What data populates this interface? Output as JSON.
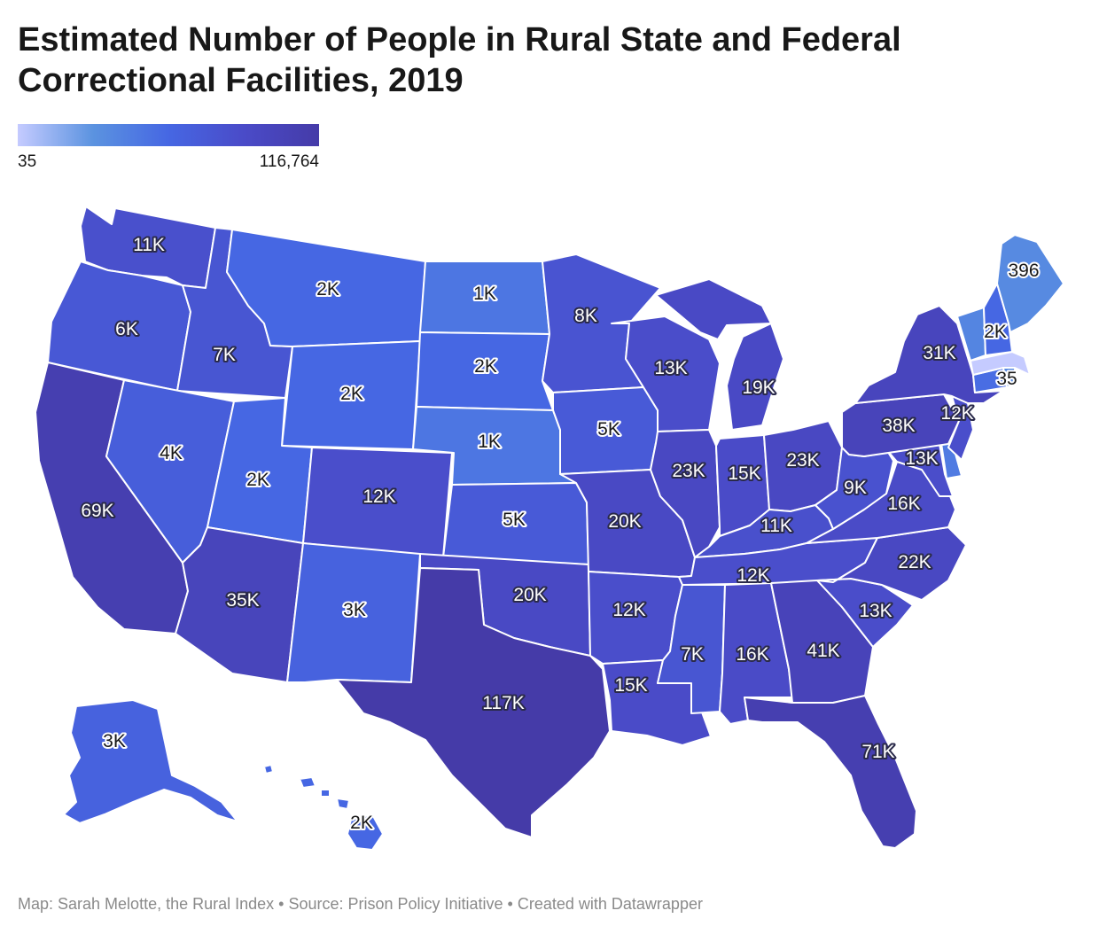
{
  "title": "Estimated Number of People in Rural State and Federal Correctional Facilities, 2019",
  "legend": {
    "min_label": "35",
    "max_label": "116,764",
    "min_value": 35,
    "max_value": 116764
  },
  "colors": {
    "scale": [
      "#c5cbff",
      "#5b93e0",
      "#4667e3",
      "#4a4bc8",
      "#453ba8"
    ],
    "state_border": "#ffffff",
    "footer_text": "#8a8a8a"
  },
  "footer": "Map: Sarah Melotte, the Rural Index • Source: Prison Policy Initiative • Created with Datawrapper",
  "states": [
    {
      "id": "WA",
      "label": "11K",
      "value": 11000
    },
    {
      "id": "OR",
      "label": "6K",
      "value": 6000
    },
    {
      "id": "CA",
      "label": "69K",
      "value": 69000
    },
    {
      "id": "ID",
      "label": "7K",
      "value": 7000
    },
    {
      "id": "NV",
      "label": "4K",
      "value": 4000
    },
    {
      "id": "MT",
      "label": "2K",
      "value": 2000
    },
    {
      "id": "WY",
      "label": "2K",
      "value": 2000
    },
    {
      "id": "UT",
      "label": "2K",
      "value": 2000
    },
    {
      "id": "AZ",
      "label": "35K",
      "value": 35000
    },
    {
      "id": "CO",
      "label": "12K",
      "value": 12000
    },
    {
      "id": "NM",
      "label": "3K",
      "value": 3000
    },
    {
      "id": "ND",
      "label": "1K",
      "value": 1000
    },
    {
      "id": "SD",
      "label": "2K",
      "value": 2000
    },
    {
      "id": "NE",
      "label": "1K",
      "value": 1000
    },
    {
      "id": "KS",
      "label": "5K",
      "value": 5000
    },
    {
      "id": "OK",
      "label": "20K",
      "value": 20000
    },
    {
      "id": "TX",
      "label": "117K",
      "value": 116764
    },
    {
      "id": "MN",
      "label": "8K",
      "value": 8000
    },
    {
      "id": "IA",
      "label": "5K",
      "value": 5000
    },
    {
      "id": "MO",
      "label": "20K",
      "value": 20000
    },
    {
      "id": "AR",
      "label": "12K",
      "value": 12000
    },
    {
      "id": "LA",
      "label": "15K",
      "value": 15000
    },
    {
      "id": "WI",
      "label": "13K",
      "value": 13000
    },
    {
      "id": "IL",
      "label": "23K",
      "value": 23000
    },
    {
      "id": "MI",
      "label": "19K",
      "value": 19000
    },
    {
      "id": "IN",
      "label": "15K",
      "value": 15000
    },
    {
      "id": "OH",
      "label": "23K",
      "value": 23000
    },
    {
      "id": "KY",
      "label": "11K",
      "value": 11000
    },
    {
      "id": "TN",
      "label": "12K",
      "value": 12000
    },
    {
      "id": "MS",
      "label": "7K",
      "value": 7000
    },
    {
      "id": "AL",
      "label": "16K",
      "value": 16000
    },
    {
      "id": "GA",
      "label": "41K",
      "value": 41000
    },
    {
      "id": "FL",
      "label": "71K",
      "value": 71000
    },
    {
      "id": "SC",
      "label": "13K",
      "value": 13000
    },
    {
      "id": "NC",
      "label": "22K",
      "value": 22000
    },
    {
      "id": "VA",
      "label": "16K",
      "value": 16000
    },
    {
      "id": "WV",
      "label": "9K",
      "value": 9000
    },
    {
      "id": "MD",
      "label": "13K",
      "value": 13000
    },
    {
      "id": "DE",
      "label": "",
      "value": 800
    },
    {
      "id": "PA",
      "label": "38K",
      "value": 38000
    },
    {
      "id": "NJ",
      "label": "12K",
      "value": 12000
    },
    {
      "id": "NY",
      "label": "31K",
      "value": 31000
    },
    {
      "id": "CT",
      "label": "",
      "value": 1500
    },
    {
      "id": "RI",
      "label": "",
      "value": 400
    },
    {
      "id": "MA",
      "label": "35",
      "value": 35
    },
    {
      "id": "VT",
      "label": "",
      "value": 500
    },
    {
      "id": "NH",
      "label": "2K",
      "value": 2000
    },
    {
      "id": "ME",
      "label": "396",
      "value": 396
    },
    {
      "id": "AK",
      "label": "3K",
      "value": 3000
    },
    {
      "id": "HI",
      "label": "2K",
      "value": 2000
    }
  ]
}
